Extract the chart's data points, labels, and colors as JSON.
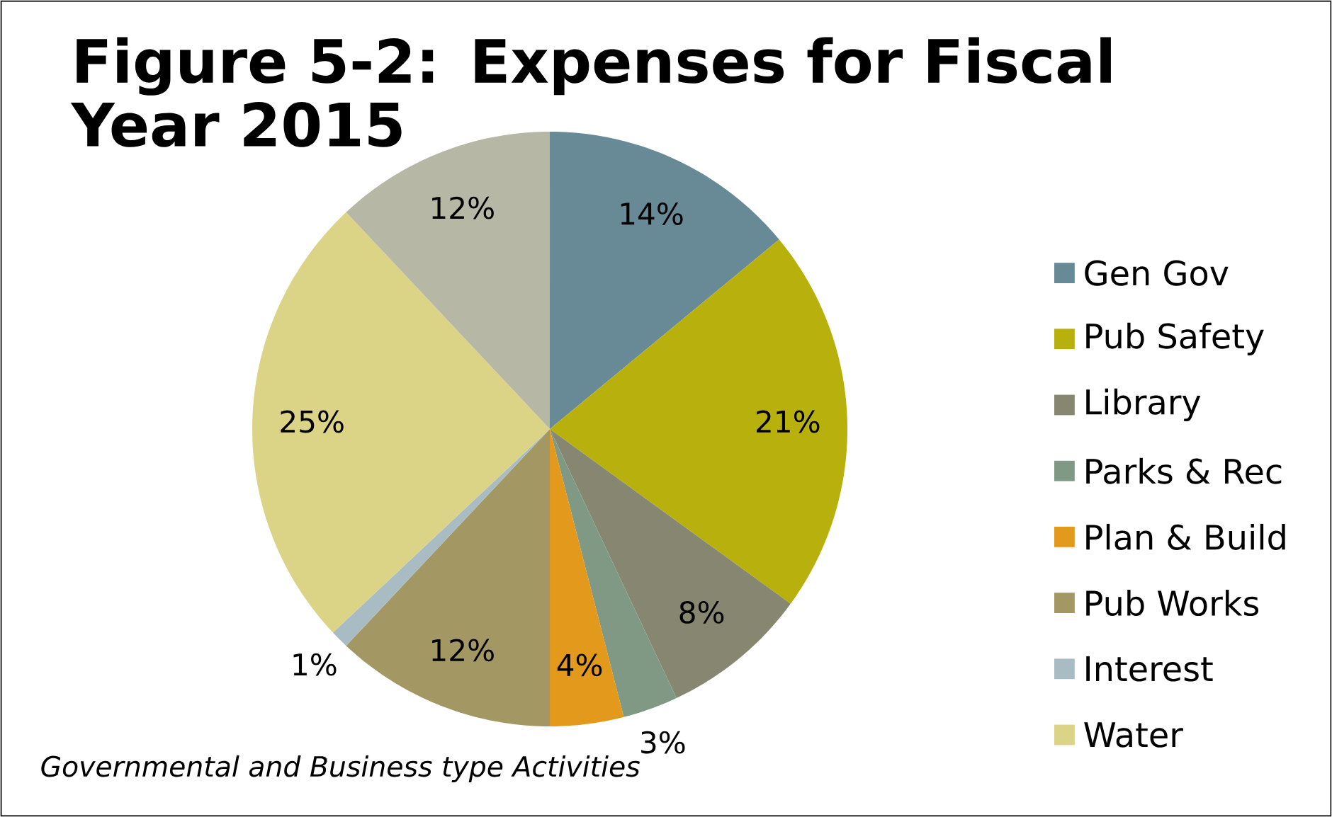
{
  "chart_data": {
    "type": "pie",
    "title": "Figure 5-2:  Expenses for Fiscal Year 2015",
    "categories": [
      "Gen Gov",
      "Pub Safety",
      "Library",
      "Parks & Rec",
      "Plan & Build",
      "Pub Works",
      "Interest",
      "Water",
      null
    ],
    "values": [
      14,
      21,
      8,
      3,
      4,
      12,
      1,
      25,
      12
    ],
    "value_labels": [
      "14%",
      "21%",
      "8%",
      "3%",
      "4%",
      "12%",
      "1%",
      "25%",
      "12%"
    ],
    "colors": [
      "#688a96",
      "#b8b00c",
      "#878670",
      "#7f9985",
      "#e3991b",
      "#a39764",
      "#a9bcc4",
      "#dbd386",
      "#b7b7a6"
    ],
    "legend": "right",
    "annotations": [
      "Governmental and Business type Activities"
    ]
  }
}
